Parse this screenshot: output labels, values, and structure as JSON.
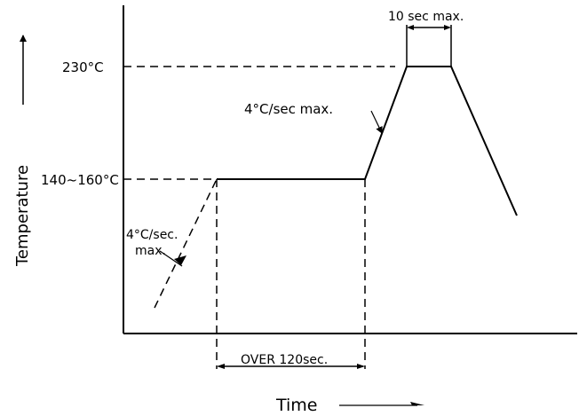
{
  "labels": {
    "temp_high": "230°C",
    "temp_preheat": "140~160°C",
    "ramp_up_label": "4°C/sec max.",
    "preheat_ramp_line1": "4°C/sec.",
    "preheat_ramp_line2": "max.",
    "peak_duration": "10 sec max.",
    "preheat_duration": "OVER 120sec.",
    "y_axis": "Temperature",
    "x_axis": "Time"
  },
  "profile": {
    "peak_temp_c": 230,
    "preheat_temp_range_c": [
      140,
      160
    ],
    "max_ramp_rate_c_per_sec": 4,
    "peak_time_max_sec": 10,
    "preheat_time_min_sec": 120
  }
}
